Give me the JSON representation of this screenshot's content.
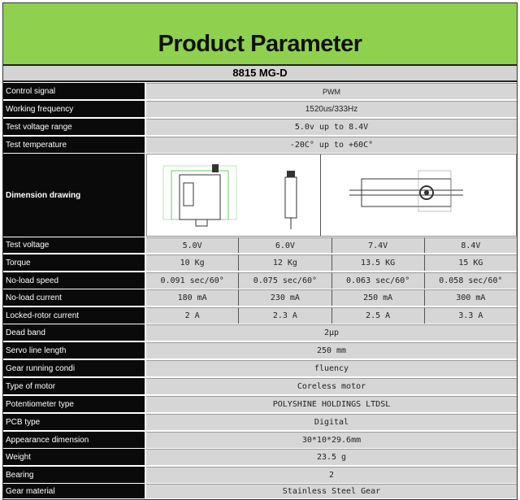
{
  "header": {
    "title": "Product Parameter",
    "model": "8815 MG-D"
  },
  "rows": [
    {
      "label": "Control signal",
      "values": [
        "PWM"
      ]
    },
    {
      "label": "Working frequency",
      "values": [
        "1520us/333Hz"
      ]
    },
    {
      "label": "Test voltage range",
      "values": [
        "5.0v up to 8.4V"
      ]
    },
    {
      "label": "Test temperature",
      "values": [
        "-20C° up to +60C°"
      ]
    },
    {
      "label": "Dimension drawing",
      "drawing": true
    },
    {
      "label": "Test voltage",
      "values": [
        "5.0V",
        "6.0V",
        "7.4V",
        "8.4V"
      ]
    },
    {
      "label": "Torque",
      "values": [
        "10 Kg",
        "12 Kg",
        "13.5 KG",
        "15 KG"
      ]
    },
    {
      "label": "No-load speed",
      "values": [
        "0.091 sec/60°",
        "0.075 sec/60°",
        "0.063 sec/60°",
        "0.058 sec/60°"
      ]
    },
    {
      "label": "No-load current",
      "values": [
        "180 mA",
        "230 mA",
        "250 mA",
        "300 mA"
      ]
    },
    {
      "label": "Locked-rotor current",
      "values": [
        "2 A",
        "2.3 A",
        "2.5 A",
        "3.3 A"
      ]
    },
    {
      "label": "Dead band",
      "values": [
        "2μp"
      ]
    },
    {
      "label": "Servo line length",
      "values": [
        "250 mm"
      ]
    },
    {
      "label": "Gear running condi",
      "values": [
        "fluency"
      ]
    },
    {
      "label": "Type of motor",
      "values": [
        "Coreless motor"
      ]
    },
    {
      "label": "Potentiometer type",
      "values": [
        "POLYSHINE HOLDINGS LTDSL"
      ]
    },
    {
      "label": "PCB type",
      "values": [
        "Digital"
      ]
    },
    {
      "label": "Appearance dimension",
      "values": [
        "30*10*29.6mm"
      ]
    },
    {
      "label": "Weight",
      "values": [
        "23.5 g"
      ]
    },
    {
      "label": "Bearing",
      "values": [
        "2"
      ]
    },
    {
      "label": "Gear material",
      "values": [
        "Stainless Steel Gear"
      ]
    }
  ]
}
